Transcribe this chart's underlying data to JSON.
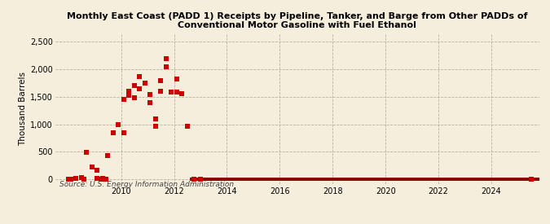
{
  "title_line1": "Monthly East Coast (PADD 1) Receipts by Pipeline, Tanker, and Barge from Other PADDs of",
  "title_line2": "Conventional Motor Gasoline with Fuel Ethanol",
  "ylabel": "Thousand Barrels",
  "source": "Source: U.S. Energy Information Administration",
  "background_color": "#f5eedc",
  "scatter_color": "#cc0000",
  "line_color": "#8b0000",
  "xlim": [
    2007.5,
    2025.8
  ],
  "ylim": [
    -80,
    2650
  ],
  "yticks": [
    0,
    500,
    1000,
    1500,
    2000,
    2500
  ],
  "xticks": [
    2010,
    2012,
    2014,
    2016,
    2018,
    2020,
    2022,
    2024
  ],
  "scatter_x": [
    2008.1,
    2008.3,
    2008.5,
    2008.7,
    2008.9,
    2009.1,
    2009.1,
    2009.3,
    2009.5,
    2009.7,
    2009.9,
    2010.1,
    2010.1,
    2010.3,
    2010.3,
    2010.5,
    2010.5,
    2010.7,
    2010.7,
    2010.9,
    2011.1,
    2011.1,
    2011.3,
    2011.3,
    2011.5,
    2011.5,
    2011.7,
    2011.7,
    2011.9,
    2012.1,
    2012.1,
    2012.3,
    2012.5
  ],
  "scatter_y": [
    5,
    10,
    25,
    490,
    230,
    170,
    10,
    10,
    430,
    840,
    1000,
    850,
    1450,
    1530,
    1600,
    1480,
    1700,
    1650,
    1870,
    1750,
    1400,
    1540,
    960,
    1100,
    1600,
    1800,
    2050,
    2200,
    1580,
    1830,
    1580,
    1560,
    960
  ],
  "near_zero_x": [
    2008.0,
    2008.05,
    2008.58,
    2009.25,
    2009.42,
    2012.75,
    2013.0,
    2025.5
  ],
  "near_zero_y": [
    0,
    0,
    0,
    0,
    0,
    0,
    0,
    0
  ],
  "hline_x_start": 2012.6,
  "hline_x_end": 2025.8,
  "hline_y": 0
}
